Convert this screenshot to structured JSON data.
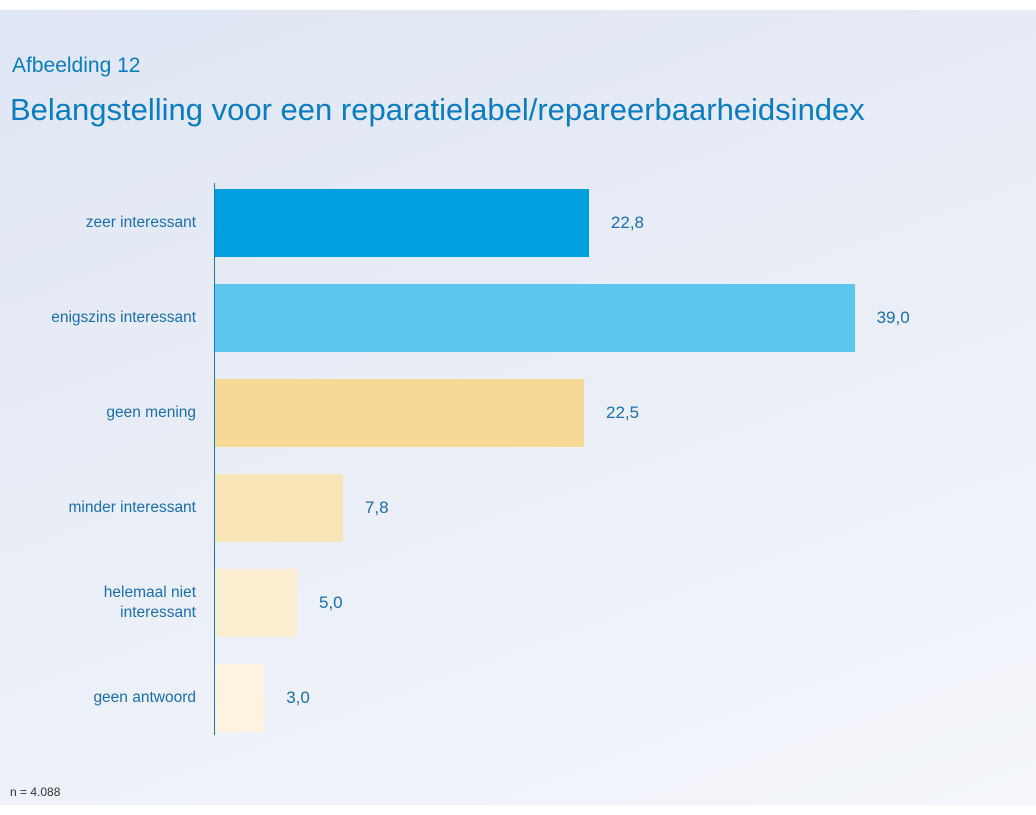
{
  "chart_data": {
    "type": "bar",
    "orientation": "horizontal",
    "subtitle": "Afbeelding 12",
    "title": "Belangstelling voor een reparatielabel/repareerbaarheidsindex",
    "categories": [
      "zeer interessant",
      "enigszins interessant",
      "geen mening",
      "minder interessant",
      "helemaal niet interessant",
      "geen antwoord"
    ],
    "values": [
      22.8,
      39.0,
      22.5,
      7.8,
      5.0,
      3.0
    ],
    "value_labels": [
      "22,8",
      "39,0",
      "22,5",
      "7,8",
      "5,0",
      "3,0"
    ],
    "colors": [
      "#009fe0",
      "#5cc6ee",
      "#f6d995",
      "#f8e4b6",
      "#fbedcf",
      "#fdf3df"
    ],
    "note": "n = 4.088"
  }
}
